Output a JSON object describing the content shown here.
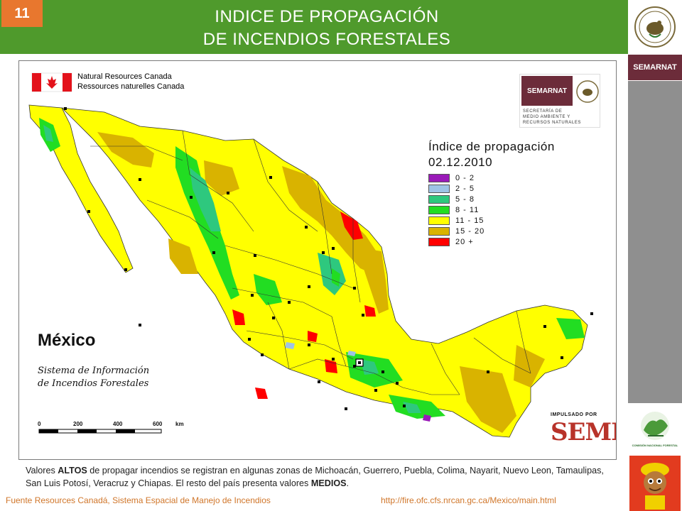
{
  "slide": {
    "number": "11",
    "title_line1": "INDICE DE PROPAGACIÓN",
    "title_line2": "DE INCENDIOS FORESTALES"
  },
  "map": {
    "agency_line1": "Natural Resources Canada",
    "agency_line2": "Ressources naturelles Canada",
    "semarnat_logo": "SEMARNAT",
    "semarnat_sub_line1": "SECRETARÍA DE",
    "semarnat_sub_line2": "MEDIO AMBIENTE Y",
    "semarnat_sub_line3": "RECURSOS NATURALES",
    "legend_title_line1": "Índice de propagación",
    "legend_title_line2": "02.12.2010",
    "legend": [
      {
        "label": "0 - 2",
        "color": "#9a1ab8"
      },
      {
        "label": "2 - 5",
        "color": "#9ec3e6"
      },
      {
        "label": "5 - 8",
        "color": "#2ec87e"
      },
      {
        "label": "8 - 11",
        "color": "#22dd22"
      },
      {
        "label": "11 - 15",
        "color": "#ffff00"
      },
      {
        "label": "15 - 20",
        "color": "#d9b300"
      },
      {
        "label": "20 +",
        "color": "#ff0000"
      }
    ],
    "country_label": "México",
    "system_line1": "Sistema de Información",
    "system_line2": "de Incendios Forestales",
    "scale_labels": [
      "0",
      "200",
      "400",
      "600",
      "km"
    ],
    "semi_tagline": "IMPULSADO POR",
    "semi_name": "SEMI"
  },
  "right_panel": {
    "semarnat_label": "SEMARNAT",
    "conafor_label": "COMISIÓN NACIONAL FORESTAL"
  },
  "caption": {
    "p1": "Valores ",
    "b1": "ALTOS",
    "p2": " de propagar incendios se registran en algunas zonas de Michoacán, Guerrero,  Puebla, Colima, Nayarit, Nuevo Leon, Tamaulipas, San Luis Potosí, Veracruz y Chiapas. El resto del país presenta valores ",
    "b2": "MEDIOS",
    "p3": "."
  },
  "footer": {
    "source": "Fuente Resources Canadá, Sistema Espacial de Manejo de Incendios",
    "url": "http://fire.ofc.cfs.nrcan.gc.ca/Mexico/main.html"
  }
}
